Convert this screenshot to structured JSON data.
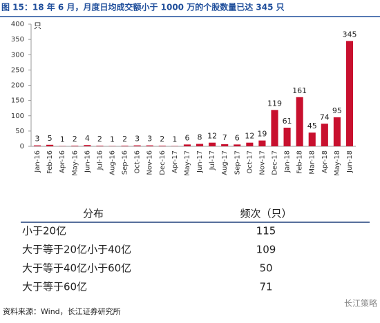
{
  "chart_data": {
    "type": "bar",
    "title": "图 15：18 年 6 月，月度日均成交额小于 1000 万的个股数量已达 345 只",
    "y_unit": "只",
    "categories": [
      "Jan-16",
      "Feb-16",
      "Apr-16",
      "May-16",
      "Jun-16",
      "Jul-16",
      "Aug-16",
      "Sep-16",
      "Oct-16",
      "Nov-16",
      "Dec-16",
      "Apr-17",
      "May-17",
      "Jun-17",
      "Jul-17",
      "Aug-17",
      "Sep-17",
      "Oct-17",
      "Nov-17",
      "Dec-17",
      "Jan-18",
      "Feb-18",
      "Mar-18",
      "Apr-18",
      "May-18",
      "Jun-18"
    ],
    "values": [
      3,
      5,
      1,
      2,
      4,
      2,
      1,
      2,
      3,
      3,
      2,
      1,
      6,
      8,
      12,
      7,
      6,
      12,
      19,
      119,
      61,
      161,
      45,
      74,
      95,
      345
    ],
    "color": "#c8102e",
    "ylim": [
      0,
      400
    ],
    "yticks": [
      0,
      50,
      100,
      150,
      200,
      250,
      300,
      350,
      400
    ]
  },
  "table": {
    "header": [
      "分布",
      "频次（只）"
    ],
    "rows": [
      [
        "小于20亿",
        115
      ],
      [
        "大于等于20亿小于40亿",
        109
      ],
      [
        "大于等于40亿小于60亿",
        50
      ],
      [
        "大于等于60亿",
        71
      ]
    ]
  },
  "source": "资料来源：Wind，长江证券研究所",
  "watermark": "长江策略"
}
